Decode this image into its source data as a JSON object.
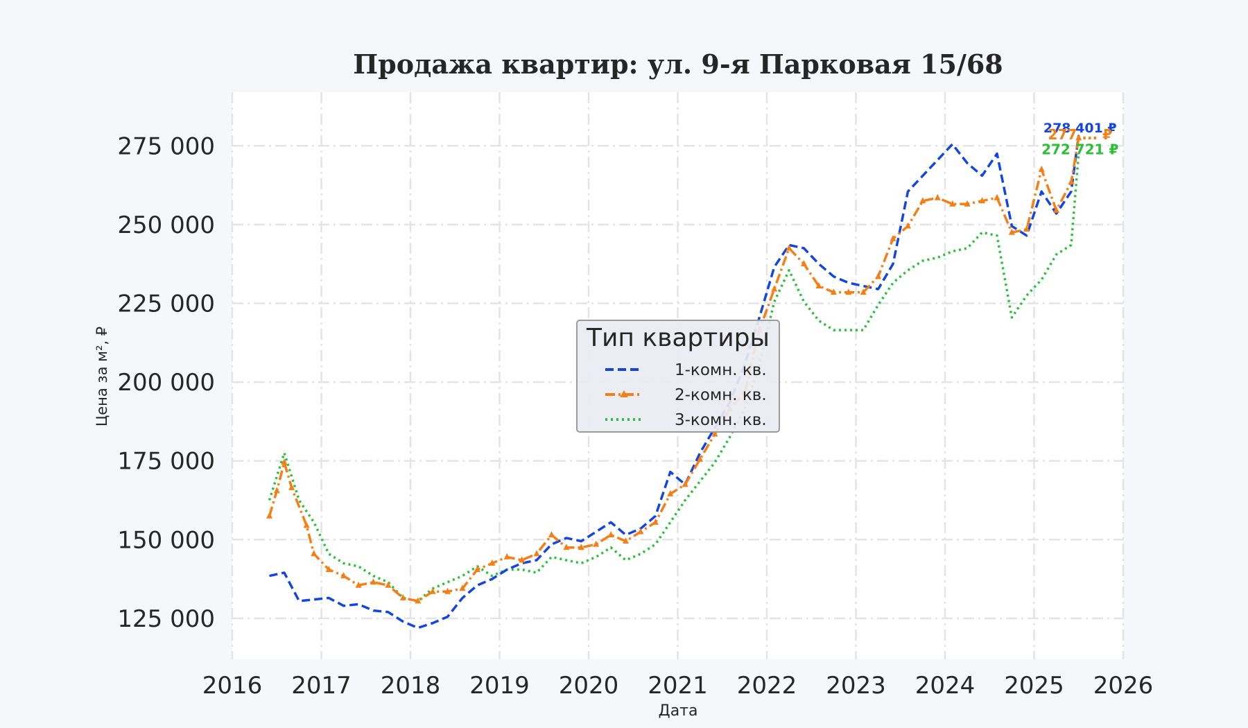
{
  "chart_data": {
    "type": "line",
    "title": "Продажа квартир: ул. 9-я Парковая 15/68",
    "xlabel": "Дата",
    "ylabel": "Цена за м², ₽",
    "xlim": [
      "2016-01-01",
      "2026-01-01"
    ],
    "ylim": [
      112000,
      292000
    ],
    "x_ticks": [
      "2016",
      "2017",
      "2018",
      "2019",
      "2020",
      "2021",
      "2022",
      "2023",
      "2024",
      "2025",
      "2026"
    ],
    "y_ticks": [
      {
        "value": 125000,
        "label": "125 000"
      },
      {
        "value": 150000,
        "label": "150 000"
      },
      {
        "value": 175000,
        "label": "175 000"
      },
      {
        "value": 200000,
        "label": "200 000"
      },
      {
        "value": 225000,
        "label": "225 000"
      },
      {
        "value": 250000,
        "label": "250 000"
      },
      {
        "value": 275000,
        "label": "275 000"
      }
    ],
    "grid": true,
    "legend": {
      "title": "Тип квартиры",
      "placement": "center"
    },
    "series": [
      {
        "name": "1-комн. кв.",
        "color": "#1346e0",
        "line_style": "dashed",
        "marker": "none",
        "points": [
          [
            "2016-06",
            138500
          ],
          [
            "2016-08",
            139500
          ],
          [
            "2016-10",
            130500
          ],
          [
            "2016-12",
            131000
          ],
          [
            "2017-02",
            131500
          ],
          [
            "2017-04",
            129000
          ],
          [
            "2017-06",
            129500
          ],
          [
            "2017-08",
            127500
          ],
          [
            "2017-10",
            127000
          ],
          [
            "2017-12",
            124000
          ],
          [
            "2018-02",
            122000
          ],
          [
            "2018-04",
            123500
          ],
          [
            "2018-06",
            125500
          ],
          [
            "2018-08",
            131500
          ],
          [
            "2018-10",
            135500
          ],
          [
            "2018-12",
            137500
          ],
          [
            "2019-02",
            140500
          ],
          [
            "2019-04",
            142500
          ],
          [
            "2019-06",
            143500
          ],
          [
            "2019-08",
            148500
          ],
          [
            "2019-10",
            150500
          ],
          [
            "2019-12",
            149500
          ],
          [
            "2020-02",
            152500
          ],
          [
            "2020-04",
            155500
          ],
          [
            "2020-06",
            151500
          ],
          [
            "2020-08",
            153500
          ],
          [
            "2020-10",
            157500
          ],
          [
            "2020-12",
            171500
          ],
          [
            "2021-02",
            167500
          ],
          [
            "2021-04",
            177500
          ],
          [
            "2021-06",
            185500
          ],
          [
            "2021-08",
            193500
          ],
          [
            "2021-10",
            205500
          ],
          [
            "2021-12",
            220500
          ],
          [
            "2022-02",
            236500
          ],
          [
            "2022-04",
            243500
          ],
          [
            "2022-06",
            242500
          ],
          [
            "2022-08",
            237500
          ],
          [
            "2022-10",
            233500
          ],
          [
            "2022-12",
            231500
          ],
          [
            "2023-02",
            230500
          ],
          [
            "2023-04",
            229500
          ],
          [
            "2023-06",
            237500
          ],
          [
            "2023-08",
            260500
          ],
          [
            "2023-10",
            265500
          ],
          [
            "2023-12",
            270500
          ],
          [
            "2024-02",
            275500
          ],
          [
            "2024-04",
            269500
          ],
          [
            "2024-06",
            265500
          ],
          [
            "2024-08",
            272500
          ],
          [
            "2024-10",
            249500
          ],
          [
            "2024-12",
            246500
          ],
          [
            "2025-02",
            260500
          ],
          [
            "2025-04",
            253500
          ],
          [
            "2025-06",
            260500
          ],
          [
            "2025-07",
            278401
          ]
        ]
      },
      {
        "name": "2-комн. кв.",
        "color": "#f57f17",
        "line_style": "dashdot",
        "marker": "triangle",
        "points": [
          [
            "2016-06",
            157500
          ],
          [
            "2016-07",
            165500
          ],
          [
            "2016-08",
            174500
          ],
          [
            "2016-09",
            166500
          ],
          [
            "2016-11",
            154500
          ],
          [
            "2016-12",
            145500
          ],
          [
            "2017-02",
            140500
          ],
          [
            "2017-04",
            138500
          ],
          [
            "2017-06",
            135500
          ],
          [
            "2017-08",
            136500
          ],
          [
            "2017-10",
            135500
          ],
          [
            "2017-12",
            131500
          ],
          [
            "2018-02",
            130500
          ],
          [
            "2018-04",
            133500
          ],
          [
            "2018-06",
            133500
          ],
          [
            "2018-08",
            134500
          ],
          [
            "2018-10",
            140500
          ],
          [
            "2018-12",
            142500
          ],
          [
            "2019-02",
            144500
          ],
          [
            "2019-04",
            143500
          ],
          [
            "2019-06",
            145500
          ],
          [
            "2019-08",
            151500
          ],
          [
            "2019-10",
            147500
          ],
          [
            "2019-12",
            147500
          ],
          [
            "2020-02",
            148500
          ],
          [
            "2020-04",
            151500
          ],
          [
            "2020-06",
            149500
          ],
          [
            "2020-08",
            152500
          ],
          [
            "2020-10",
            155500
          ],
          [
            "2020-12",
            164500
          ],
          [
            "2021-02",
            167500
          ],
          [
            "2021-04",
            175500
          ],
          [
            "2021-06",
            183500
          ],
          [
            "2021-08",
            191500
          ],
          [
            "2021-10",
            196500
          ],
          [
            "2021-12",
            216500
          ],
          [
            "2022-02",
            229500
          ],
          [
            "2022-04",
            242500
          ],
          [
            "2022-06",
            237500
          ],
          [
            "2022-08",
            230500
          ],
          [
            "2022-10",
            228500
          ],
          [
            "2022-12",
            228500
          ],
          [
            "2023-02",
            228500
          ],
          [
            "2023-04",
            233500
          ],
          [
            "2023-06",
            245500
          ],
          [
            "2023-08",
            249500
          ],
          [
            "2023-10",
            257500
          ],
          [
            "2023-12",
            258500
          ],
          [
            "2024-02",
            256500
          ],
          [
            "2024-04",
            256500
          ],
          [
            "2024-06",
            257500
          ],
          [
            "2024-08",
            258500
          ],
          [
            "2024-10",
            247500
          ],
          [
            "2024-12",
            248500
          ],
          [
            "2025-02",
            267500
          ],
          [
            "2025-04",
            254500
          ],
          [
            "2025-06",
            263500
          ],
          [
            "2025-07",
            277500
          ]
        ]
      },
      {
        "name": "3-комн. кв.",
        "color": "#2bbf3a",
        "line_style": "dotted",
        "marker": "none",
        "points": [
          [
            "2016-06",
            162500
          ],
          [
            "2016-08",
            177500
          ],
          [
            "2016-10",
            162500
          ],
          [
            "2016-12",
            155500
          ],
          [
            "2017-02",
            145500
          ],
          [
            "2017-04",
            142500
          ],
          [
            "2017-06",
            141500
          ],
          [
            "2017-08",
            138500
          ],
          [
            "2017-10",
            136500
          ],
          [
            "2017-12",
            131500
          ],
          [
            "2018-02",
            130500
          ],
          [
            "2018-04",
            134500
          ],
          [
            "2018-06",
            136500
          ],
          [
            "2018-08",
            138500
          ],
          [
            "2018-10",
            141500
          ],
          [
            "2018-12",
            138500
          ],
          [
            "2019-02",
            140500
          ],
          [
            "2019-04",
            140500
          ],
          [
            "2019-06",
            139500
          ],
          [
            "2019-08",
            144500
          ],
          [
            "2019-10",
            143500
          ],
          [
            "2019-12",
            142500
          ],
          [
            "2020-02",
            144500
          ],
          [
            "2020-04",
            147500
          ],
          [
            "2020-06",
            143500
          ],
          [
            "2020-08",
            145500
          ],
          [
            "2020-10",
            148500
          ],
          [
            "2020-12",
            155500
          ],
          [
            "2021-02",
            162500
          ],
          [
            "2021-04",
            168500
          ],
          [
            "2021-06",
            174500
          ],
          [
            "2021-08",
            182500
          ],
          [
            "2021-10",
            191500
          ],
          [
            "2021-12",
            205500
          ],
          [
            "2022-02",
            225500
          ],
          [
            "2022-04",
            235500
          ],
          [
            "2022-06",
            225500
          ],
          [
            "2022-08",
            219500
          ],
          [
            "2022-10",
            216500
          ],
          [
            "2022-12",
            216500
          ],
          [
            "2023-02",
            216500
          ],
          [
            "2023-04",
            224500
          ],
          [
            "2023-06",
            231500
          ],
          [
            "2023-08",
            235500
          ],
          [
            "2023-10",
            238500
          ],
          [
            "2023-12",
            239500
          ],
          [
            "2024-02",
            241500
          ],
          [
            "2024-04",
            242500
          ],
          [
            "2024-06",
            247500
          ],
          [
            "2024-08",
            246500
          ],
          [
            "2024-10",
            220500
          ],
          [
            "2024-12",
            227500
          ],
          [
            "2025-02",
            232500
          ],
          [
            "2025-04",
            240500
          ],
          [
            "2025-06",
            243500
          ],
          [
            "2025-07",
            272721
          ]
        ]
      }
    ],
    "annotations": [
      {
        "text": "278 401 ₽",
        "series": "1-комн. кв.",
        "color": "#1346e0"
      },
      {
        "text": "277 ... ₽",
        "series": "2-комн. кв.",
        "color": "#f57f17"
      },
      {
        "text": "272 721 ₽",
        "series": "3-комн. кв.",
        "color": "#2bbf3a"
      }
    ]
  },
  "legend_items": [
    {
      "label": "1-комн. кв."
    },
    {
      "label": "2-комн. кв."
    },
    {
      "label": "3-комн. кв."
    }
  ]
}
